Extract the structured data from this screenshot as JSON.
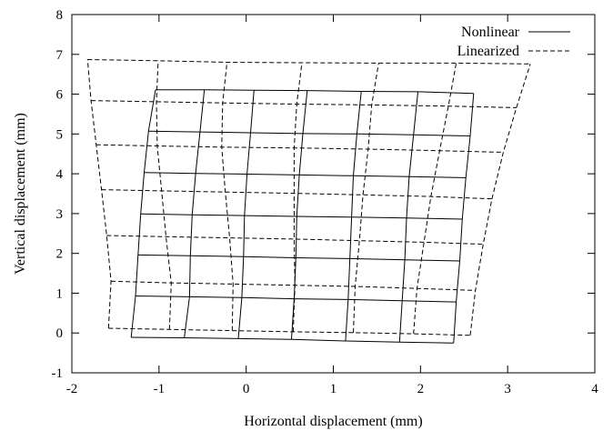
{
  "chart_data": {
    "type": "line",
    "xlabel": "Horizontal displacement (mm)",
    "ylabel": "Vertical displacement (mm)",
    "xlim": [
      -2,
      4
    ],
    "ylim": [
      -1,
      8
    ],
    "xticks": [
      "-2",
      "-1",
      "0",
      "1",
      "2",
      "3",
      "4"
    ],
    "yticks": [
      "-1",
      "0",
      "1",
      "2",
      "3",
      "4",
      "5",
      "6",
      "7",
      "8"
    ],
    "legend": {
      "placement": "top-right"
    },
    "grid": false,
    "series": [
      {
        "name": "Nonlinear",
        "style": "solid",
        "color": "#000000",
        "description_of_mesh": "deformed grid",
        "rows": [
          [
            [
              -1.32,
              -0.11
            ],
            [
              -0.71,
              -0.12
            ],
            [
              -0.09,
              -0.14
            ],
            [
              0.52,
              -0.16
            ],
            [
              1.14,
              -0.2
            ],
            [
              1.76,
              -0.23
            ],
            [
              2.38,
              -0.25
            ]
          ],
          [
            [
              -1.27,
              0.93
            ],
            [
              -0.65,
              0.91
            ],
            [
              -0.05,
              0.89
            ],
            [
              0.55,
              0.86
            ],
            [
              1.17,
              0.84
            ],
            [
              1.79,
              0.81
            ],
            [
              2.41,
              0.78
            ]
          ],
          [
            [
              -1.24,
              1.96
            ],
            [
              -0.64,
              1.94
            ],
            [
              -0.03,
              1.92
            ],
            [
              0.57,
              1.89
            ],
            [
              1.19,
              1.87
            ],
            [
              1.82,
              1.84
            ],
            [
              2.45,
              1.81
            ]
          ],
          [
            [
              -1.21,
              2.99
            ],
            [
              -0.62,
              2.97
            ],
            [
              -0.02,
              2.95
            ],
            [
              0.58,
              2.93
            ],
            [
              1.21,
              2.91
            ],
            [
              1.84,
              2.89
            ],
            [
              2.48,
              2.86
            ]
          ],
          [
            [
              -1.17,
              4.03
            ],
            [
              -0.58,
              4.01
            ],
            [
              0.01,
              3.99
            ],
            [
              0.61,
              3.97
            ],
            [
              1.23,
              3.95
            ],
            [
              1.87,
              3.93
            ],
            [
              2.52,
              3.9
            ]
          ],
          [
            [
              -1.12,
              5.07
            ],
            [
              -0.53,
              5.05
            ],
            [
              0.05,
              5.03
            ],
            [
              0.65,
              5.01
            ],
            [
              1.27,
              5.0
            ],
            [
              1.92,
              4.98
            ],
            [
              2.57,
              4.95
            ]
          ],
          [
            [
              -1.04,
              6.11
            ],
            [
              -0.48,
              6.11
            ],
            [
              0.09,
              6.1
            ],
            [
              0.7,
              6.09
            ],
            [
              1.32,
              6.07
            ],
            [
              1.97,
              6.06
            ],
            [
              2.61,
              6.02
            ]
          ]
        ]
      },
      {
        "name": "Linearized",
        "style": "dashed",
        "color": "#000000",
        "description_of_mesh": "deformed grid",
        "rows": [
          [
            [
              -1.58,
              0.12
            ],
            [
              -0.88,
              0.09
            ],
            [
              -0.16,
              0.06
            ],
            [
              0.54,
              0.03
            ],
            [
              1.23,
              0.01
            ],
            [
              1.92,
              -0.02
            ],
            [
              2.57,
              -0.06
            ]
          ],
          [
            [
              -1.55,
              1.3
            ],
            [
              -0.86,
              1.26
            ],
            [
              -0.15,
              1.23
            ],
            [
              0.56,
              1.2
            ],
            [
              1.25,
              1.17
            ],
            [
              1.96,
              1.12
            ],
            [
              2.63,
              1.07
            ]
          ],
          [
            [
              -1.6,
              2.45
            ],
            [
              -0.92,
              2.42
            ],
            [
              -0.19,
              2.39
            ],
            [
              0.55,
              2.36
            ],
            [
              1.3,
              2.32
            ],
            [
              2.04,
              2.28
            ],
            [
              2.72,
              2.23
            ]
          ],
          [
            [
              -1.66,
              3.6
            ],
            [
              -0.97,
              3.57
            ],
            [
              -0.24,
              3.54
            ],
            [
              0.55,
              3.51
            ],
            [
              1.34,
              3.47
            ],
            [
              2.12,
              3.43
            ],
            [
              2.82,
              3.37
            ]
          ],
          [
            [
              -1.72,
              4.73
            ],
            [
              -1.02,
              4.7
            ],
            [
              -0.28,
              4.67
            ],
            [
              0.55,
              4.65
            ],
            [
              1.4,
              4.62
            ],
            [
              2.22,
              4.58
            ],
            [
              2.95,
              4.54
            ]
          ],
          [
            [
              -1.78,
              5.84
            ],
            [
              -1.03,
              5.81
            ],
            [
              -0.27,
              5.78
            ],
            [
              0.58,
              5.75
            ],
            [
              1.44,
              5.73
            ],
            [
              2.32,
              5.7
            ],
            [
              3.1,
              5.66
            ]
          ],
          [
            [
              -1.82,
              6.87
            ],
            [
              -1.01,
              6.84
            ],
            [
              -0.22,
              6.8
            ],
            [
              0.64,
              6.79
            ],
            [
              1.52,
              6.78
            ],
            [
              2.41,
              6.78
            ],
            [
              3.26,
              6.76
            ]
          ]
        ]
      }
    ]
  }
}
